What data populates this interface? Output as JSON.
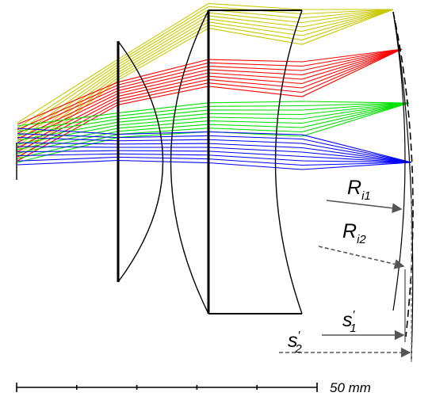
{
  "labels": {
    "r_i1": {
      "main": "R",
      "sub": "i1"
    },
    "r_i2": {
      "main": "R",
      "sub": "i2"
    },
    "s1": {
      "main": "s",
      "sub": "1",
      "prime": "′"
    },
    "s2": {
      "main": "s",
      "sub": "2",
      "prime": "′"
    }
  },
  "scale_bar": {
    "text": "50 mm",
    "ticks": 6
  },
  "ray_bundles": [
    {
      "color": "#c8c800"
    },
    {
      "color": "#ff0000"
    },
    {
      "color": "#00e000"
    },
    {
      "color": "#0000ff"
    }
  ],
  "colors": {
    "lens": "#000000",
    "annotation": "#555555"
  }
}
